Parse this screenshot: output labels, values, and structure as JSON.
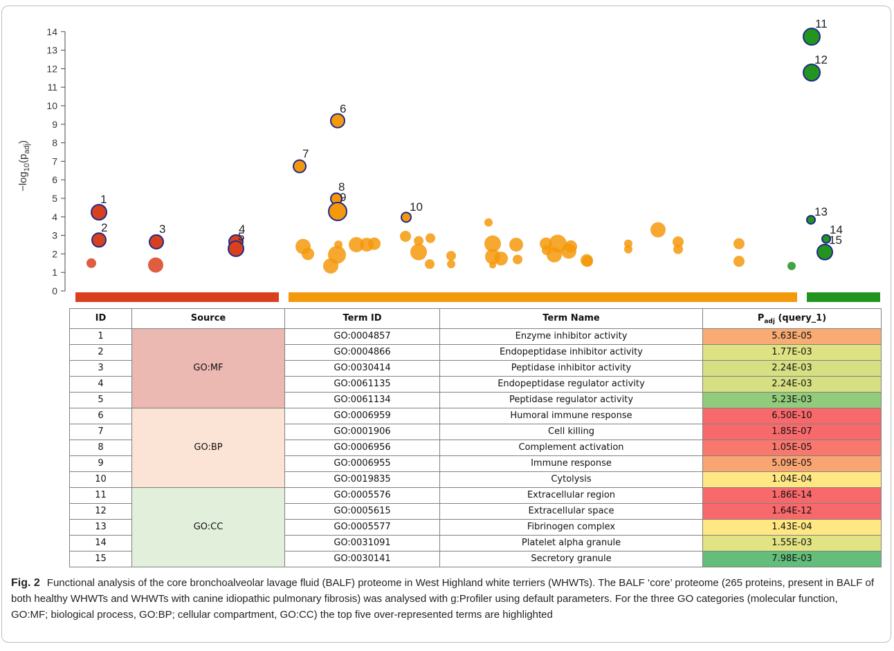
{
  "chart_data": {
    "type": "scatter",
    "ylabel": "−log₁₀(p_adj)",
    "ylim": [
      0,
      14
    ],
    "yticks": [
      "0",
      "1",
      "2",
      "3",
      "4",
      "5",
      "6",
      "7",
      "8",
      "9",
      "10",
      "11",
      "12",
      "13",
      "14"
    ],
    "categories": [
      {
        "name": "GO:MF",
        "color": "#d9411e"
      },
      {
        "name": "GO:BP",
        "color": "#f5990c"
      },
      {
        "name": "GO:CC",
        "color": "#229420"
      }
    ],
    "highlighted_points": [
      {
        "id": "1",
        "category": "GO:MF",
        "y": 4.25
      },
      {
        "id": "2",
        "category": "GO:MF",
        "y": 2.75
      },
      {
        "id": "3",
        "category": "GO:MF",
        "y": 2.65
      },
      {
        "id": "4",
        "category": "GO:MF",
        "y": 2.65
      },
      {
        "id": "5",
        "category": "GO:MF",
        "y": 2.28
      },
      {
        "id": "6",
        "category": "GO:BP",
        "y": 9.19
      },
      {
        "id": "7",
        "category": "GO:BP",
        "y": 6.73
      },
      {
        "id": "8",
        "category": "GO:BP",
        "y": 4.98
      },
      {
        "id": "9",
        "category": "GO:BP",
        "y": 4.29
      },
      {
        "id": "10",
        "category": "GO:BP",
        "y": 3.98
      },
      {
        "id": "11",
        "category": "GO:CC",
        "y": 13.73
      },
      {
        "id": "12",
        "category": "GO:CC",
        "y": 11.79
      },
      {
        "id": "13",
        "category": "GO:CC",
        "y": 3.84
      },
      {
        "id": "14",
        "category": "GO:CC",
        "y": 2.81
      },
      {
        "id": "15",
        "category": "GO:CC",
        "y": 2.1
      }
    ],
    "other_points": [
      {
        "category": "GO:MF",
        "y": 1.5
      },
      {
        "category": "GO:MF",
        "y": 1.4
      },
      {
        "category": "GO:BP",
        "y": 2.4
      },
      {
        "category": "GO:BP",
        "y": 2.0
      },
      {
        "category": "GO:BP",
        "y": 1.35
      },
      {
        "category": "GO:BP",
        "y": 1.95
      },
      {
        "category": "GO:BP",
        "y": 2.5
      },
      {
        "category": "GO:BP",
        "y": 2.5
      },
      {
        "category": "GO:BP",
        "y": 2.5
      },
      {
        "category": "GO:BP",
        "y": 2.55
      },
      {
        "category": "GO:BP",
        "y": 2.95
      },
      {
        "category": "GO:BP",
        "y": 2.7
      },
      {
        "category": "GO:BP",
        "y": 2.1
      },
      {
        "category": "GO:BP",
        "y": 2.85
      },
      {
        "category": "GO:BP",
        "y": 1.45
      },
      {
        "category": "GO:BP",
        "y": 1.9
      },
      {
        "category": "GO:BP",
        "y": 1.45
      },
      {
        "category": "GO:BP",
        "y": 3.7
      },
      {
        "category": "GO:BP",
        "y": 2.55
      },
      {
        "category": "GO:BP",
        "y": 1.85
      },
      {
        "category": "GO:BP",
        "y": 1.4
      },
      {
        "category": "GO:BP",
        "y": 1.75
      },
      {
        "category": "GO:BP",
        "y": 2.5
      },
      {
        "category": "GO:BP",
        "y": 1.7
      },
      {
        "category": "GO:BP",
        "y": 2.55
      },
      {
        "category": "GO:BP",
        "y": 2.2
      },
      {
        "category": "GO:BP",
        "y": 2.55
      },
      {
        "category": "GO:BP",
        "y": 1.95
      },
      {
        "category": "GO:BP",
        "y": 2.15
      },
      {
        "category": "GO:BP",
        "y": 2.4
      },
      {
        "category": "GO:BP",
        "y": 1.65
      },
      {
        "category": "GO:BP",
        "y": 1.6
      },
      {
        "category": "GO:BP",
        "y": 2.55
      },
      {
        "category": "GO:BP",
        "y": 2.25
      },
      {
        "category": "GO:BP",
        "y": 3.3
      },
      {
        "category": "GO:BP",
        "y": 2.65
      },
      {
        "category": "GO:BP",
        "y": 2.25
      },
      {
        "category": "GO:BP",
        "y": 2.55
      },
      {
        "category": "GO:BP",
        "y": 1.6
      },
      {
        "category": "GO:CC",
        "y": 1.35
      }
    ]
  },
  "table": {
    "headers": {
      "id": "ID",
      "source": "Source",
      "term_id": "Term ID",
      "term_name": "Term Name",
      "padj_main": "P",
      "padj_sub": "adj",
      "padj_tail": " (query_1)"
    },
    "groups": [
      {
        "label": "GO:MF",
        "color": "#ebb8b2"
      },
      {
        "label": "GO:BP",
        "color": "#fbe3d6"
      },
      {
        "label": "GO:CC",
        "color": "#e2efdb"
      }
    ],
    "rows": [
      {
        "id": "1",
        "term_id": "GO:0004857",
        "term_name": "Enzyme inhibitor activity",
        "padj": "5.63E-05",
        "color": "#f8ab73"
      },
      {
        "id": "2",
        "term_id": "GO:0004866",
        "term_name": "Endopeptidase inhibitor activity",
        "padj": "1.77E-03",
        "color": "#dee283"
      },
      {
        "id": "3",
        "term_id": "GO:0030414",
        "term_name": "Peptidase inhibitor activity",
        "padj": "2.24E-03",
        "color": "#d6e083"
      },
      {
        "id": "4",
        "term_id": "GO:0061135",
        "term_name": "Endopeptidase regulator activity",
        "padj": "2.24E-03",
        "color": "#d6e083"
      },
      {
        "id": "5",
        "term_id": "GO:0061134",
        "term_name": "Peptidase regulator activity",
        "padj": "5.23E-03",
        "color": "#93cb7c"
      },
      {
        "id": "6",
        "term_id": "GO:0006959",
        "term_name": "Humoral immune response",
        "padj": "6.50E-10",
        "color": "#f8696b"
      },
      {
        "id": "7",
        "term_id": "GO:0001906",
        "term_name": "Cell killing",
        "padj": "1.85E-07",
        "color": "#f8696b"
      },
      {
        "id": "8",
        "term_id": "GO:0006956",
        "term_name": "Complement activation",
        "padj": "1.05E-05",
        "color": "#f8786e"
      },
      {
        "id": "9",
        "term_id": "GO:0006955",
        "term_name": "Immune response",
        "padj": "5.09E-05",
        "color": "#f8a572"
      },
      {
        "id": "10",
        "term_id": "GO:0019835",
        "term_name": "Cytolysis",
        "padj": "1.04E-04",
        "color": "#ffe884"
      },
      {
        "id": "11",
        "term_id": "GO:0005576",
        "term_name": "Extracellular region",
        "padj": "1.86E-14",
        "color": "#f8696b"
      },
      {
        "id": "12",
        "term_id": "GO:0005615",
        "term_name": "Extracellular space",
        "padj": "1.64E-12",
        "color": "#f8696b"
      },
      {
        "id": "13",
        "term_id": "GO:0005577",
        "term_name": "Fibrinogen complex",
        "padj": "1.43E-04",
        "color": "#ffe884"
      },
      {
        "id": "14",
        "term_id": "GO:0031091",
        "term_name": "Platelet alpha granule",
        "padj": "1.55E-03",
        "color": "#e2e383"
      },
      {
        "id": "15",
        "term_id": "GO:0030141",
        "term_name": "Secretory granule",
        "padj": "7.98E-03",
        "color": "#63be7b"
      }
    ]
  },
  "caption": {
    "label": "Fig. 2",
    "text": "Functional analysis of the core bronchoalveolar lavage fluid (BALF) proteome in West Highland white terriers (WHWTs). The BALF ‘core’ proteome (265 proteins, present in BALF of both healthy WHWTs and WHWTs with canine idiopathic pulmonary fibrosis) was analysed with g:Profiler using default parameters. For the three GO categories (molecular function, GO:MF; biological process, GO:BP; cellular compartment, GO:CC) the top five over-represented terms are highlighted"
  }
}
